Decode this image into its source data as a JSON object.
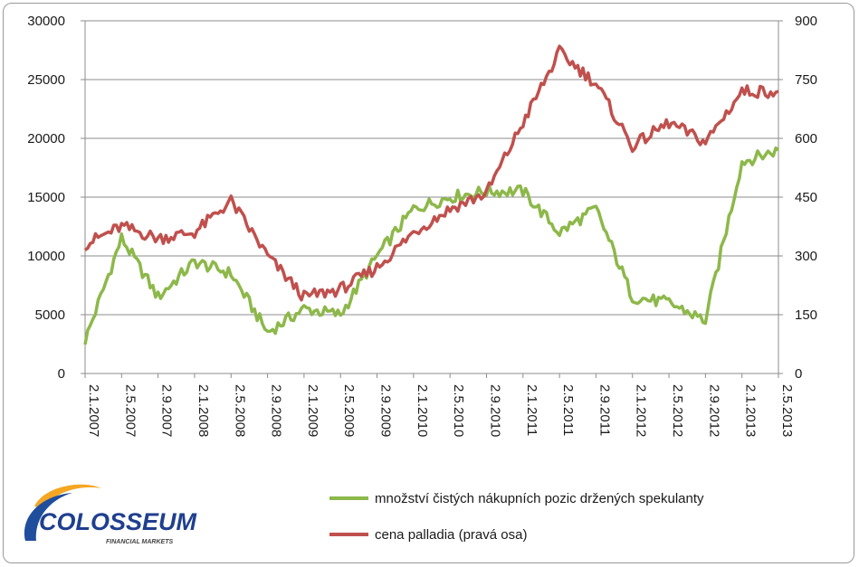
{
  "chart_data": {
    "type": "line",
    "x": [
      "2.1.2007",
      "2.5.2007",
      "2.9.2007",
      "2.1.2008",
      "2.5.2008",
      "2.9.2008",
      "2.1.2009",
      "2.5.2009",
      "2.9.2009",
      "2.1.2010",
      "2.5.2010",
      "2.9.2010",
      "2.1.2011",
      "2.5.2011",
      "2.9.2011",
      "2.1.2012",
      "2.5.2012",
      "2.9.2012",
      "2.1.2013",
      "2.5.2013"
    ],
    "x_ticks": [
      "2.1.2007",
      "2.5.2007",
      "2.9.2007",
      "2.1.2008",
      "2.5.2008",
      "2.9.2008",
      "2.1.2009",
      "2.5.2009",
      "2.9.2009",
      "2.1.2010",
      "2.5.2010",
      "2.9.2010",
      "2.1.2011",
      "2.5.2011",
      "2.9.2011",
      "2.1.2012",
      "2.5.2012",
      "2.9.2012",
      "2.1.2013",
      "2.5.2013"
    ],
    "y_left_ticks": [
      "0",
      "5000",
      "10000",
      "15000",
      "20000",
      "25000",
      "30000"
    ],
    "y_right_ticks": [
      "0",
      "150",
      "300",
      "450",
      "600",
      "750",
      "900"
    ],
    "y_left_range": [
      0,
      30000
    ],
    "y_right_range": [
      0,
      900
    ],
    "grid": true,
    "legend_position": "bottom-right",
    "series": [
      {
        "name": "množství čistých nákupních pozic držených spekulanty",
        "axis": "left",
        "color": "#8db84a",
        "values": [
          2800,
          11500,
          6500,
          9500,
          8500,
          3500,
          5500,
          5000,
          10000,
          14000,
          15000,
          15500,
          15500,
          12000,
          14000,
          6500,
          6000,
          4500,
          18000,
          19000
        ]
      },
      {
        "name": "cena palladia (pravá osa)",
        "axis": "right",
        "color": "#c0504d",
        "values": [
          330,
          375,
          345,
          360,
          440,
          300,
          195,
          215,
          270,
          360,
          420,
          460,
          640,
          820,
          740,
          580,
          640,
          590,
          720,
          720
        ]
      }
    ]
  },
  "logo": {
    "name": "COLOSSEUM",
    "tagline": "FINANCIAL MARKETS"
  }
}
